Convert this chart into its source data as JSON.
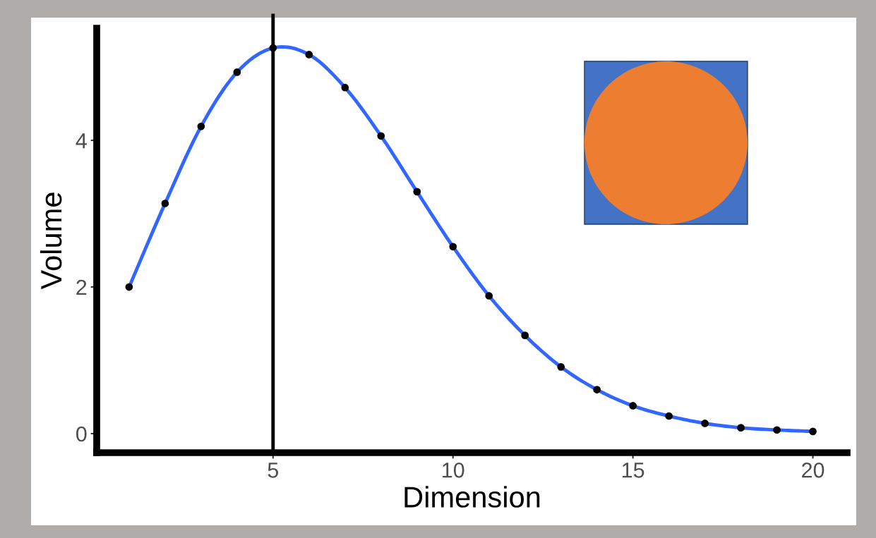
{
  "chart_data": {
    "type": "line",
    "xlabel": "Dimension",
    "ylabel": "Volume",
    "x": [
      1,
      2,
      3,
      4,
      5,
      6,
      7,
      8,
      9,
      10,
      11,
      12,
      13,
      14,
      15,
      16,
      17,
      18,
      19,
      20
    ],
    "series": [
      {
        "color": "#3366ff",
        "line_style": "solid",
        "marker": "none",
        "values": [
          2.0,
          3.14,
          4.19,
          4.93,
          5.26,
          5.17,
          4.72,
          4.06,
          3.3,
          2.55,
          1.88,
          1.34,
          0.91,
          0.6,
          0.38,
          0.24,
          0.14,
          0.08,
          0.05,
          0.03
        ]
      },
      {
        "type": "scatter",
        "color": "#000000",
        "marker": "circle",
        "values": [
          2.0,
          3.14,
          4.19,
          4.93,
          5.26,
          5.17,
          4.72,
          4.06,
          3.3,
          2.55,
          1.88,
          1.34,
          0.91,
          0.6,
          0.38,
          0.24,
          0.14,
          0.08,
          0.05,
          0.03
        ]
      }
    ],
    "xlim": [
      0.1,
      20.95
    ],
    "ylim": [
      -0.26,
      5.53
    ],
    "xticks": [
      5,
      10,
      15,
      20
    ],
    "yticks": [
      0,
      2,
      4
    ],
    "ref_lines": [
      {
        "axis": "x",
        "value": 5,
        "color": "#000000",
        "line_style": "solid"
      }
    ],
    "grid": false
  }
}
